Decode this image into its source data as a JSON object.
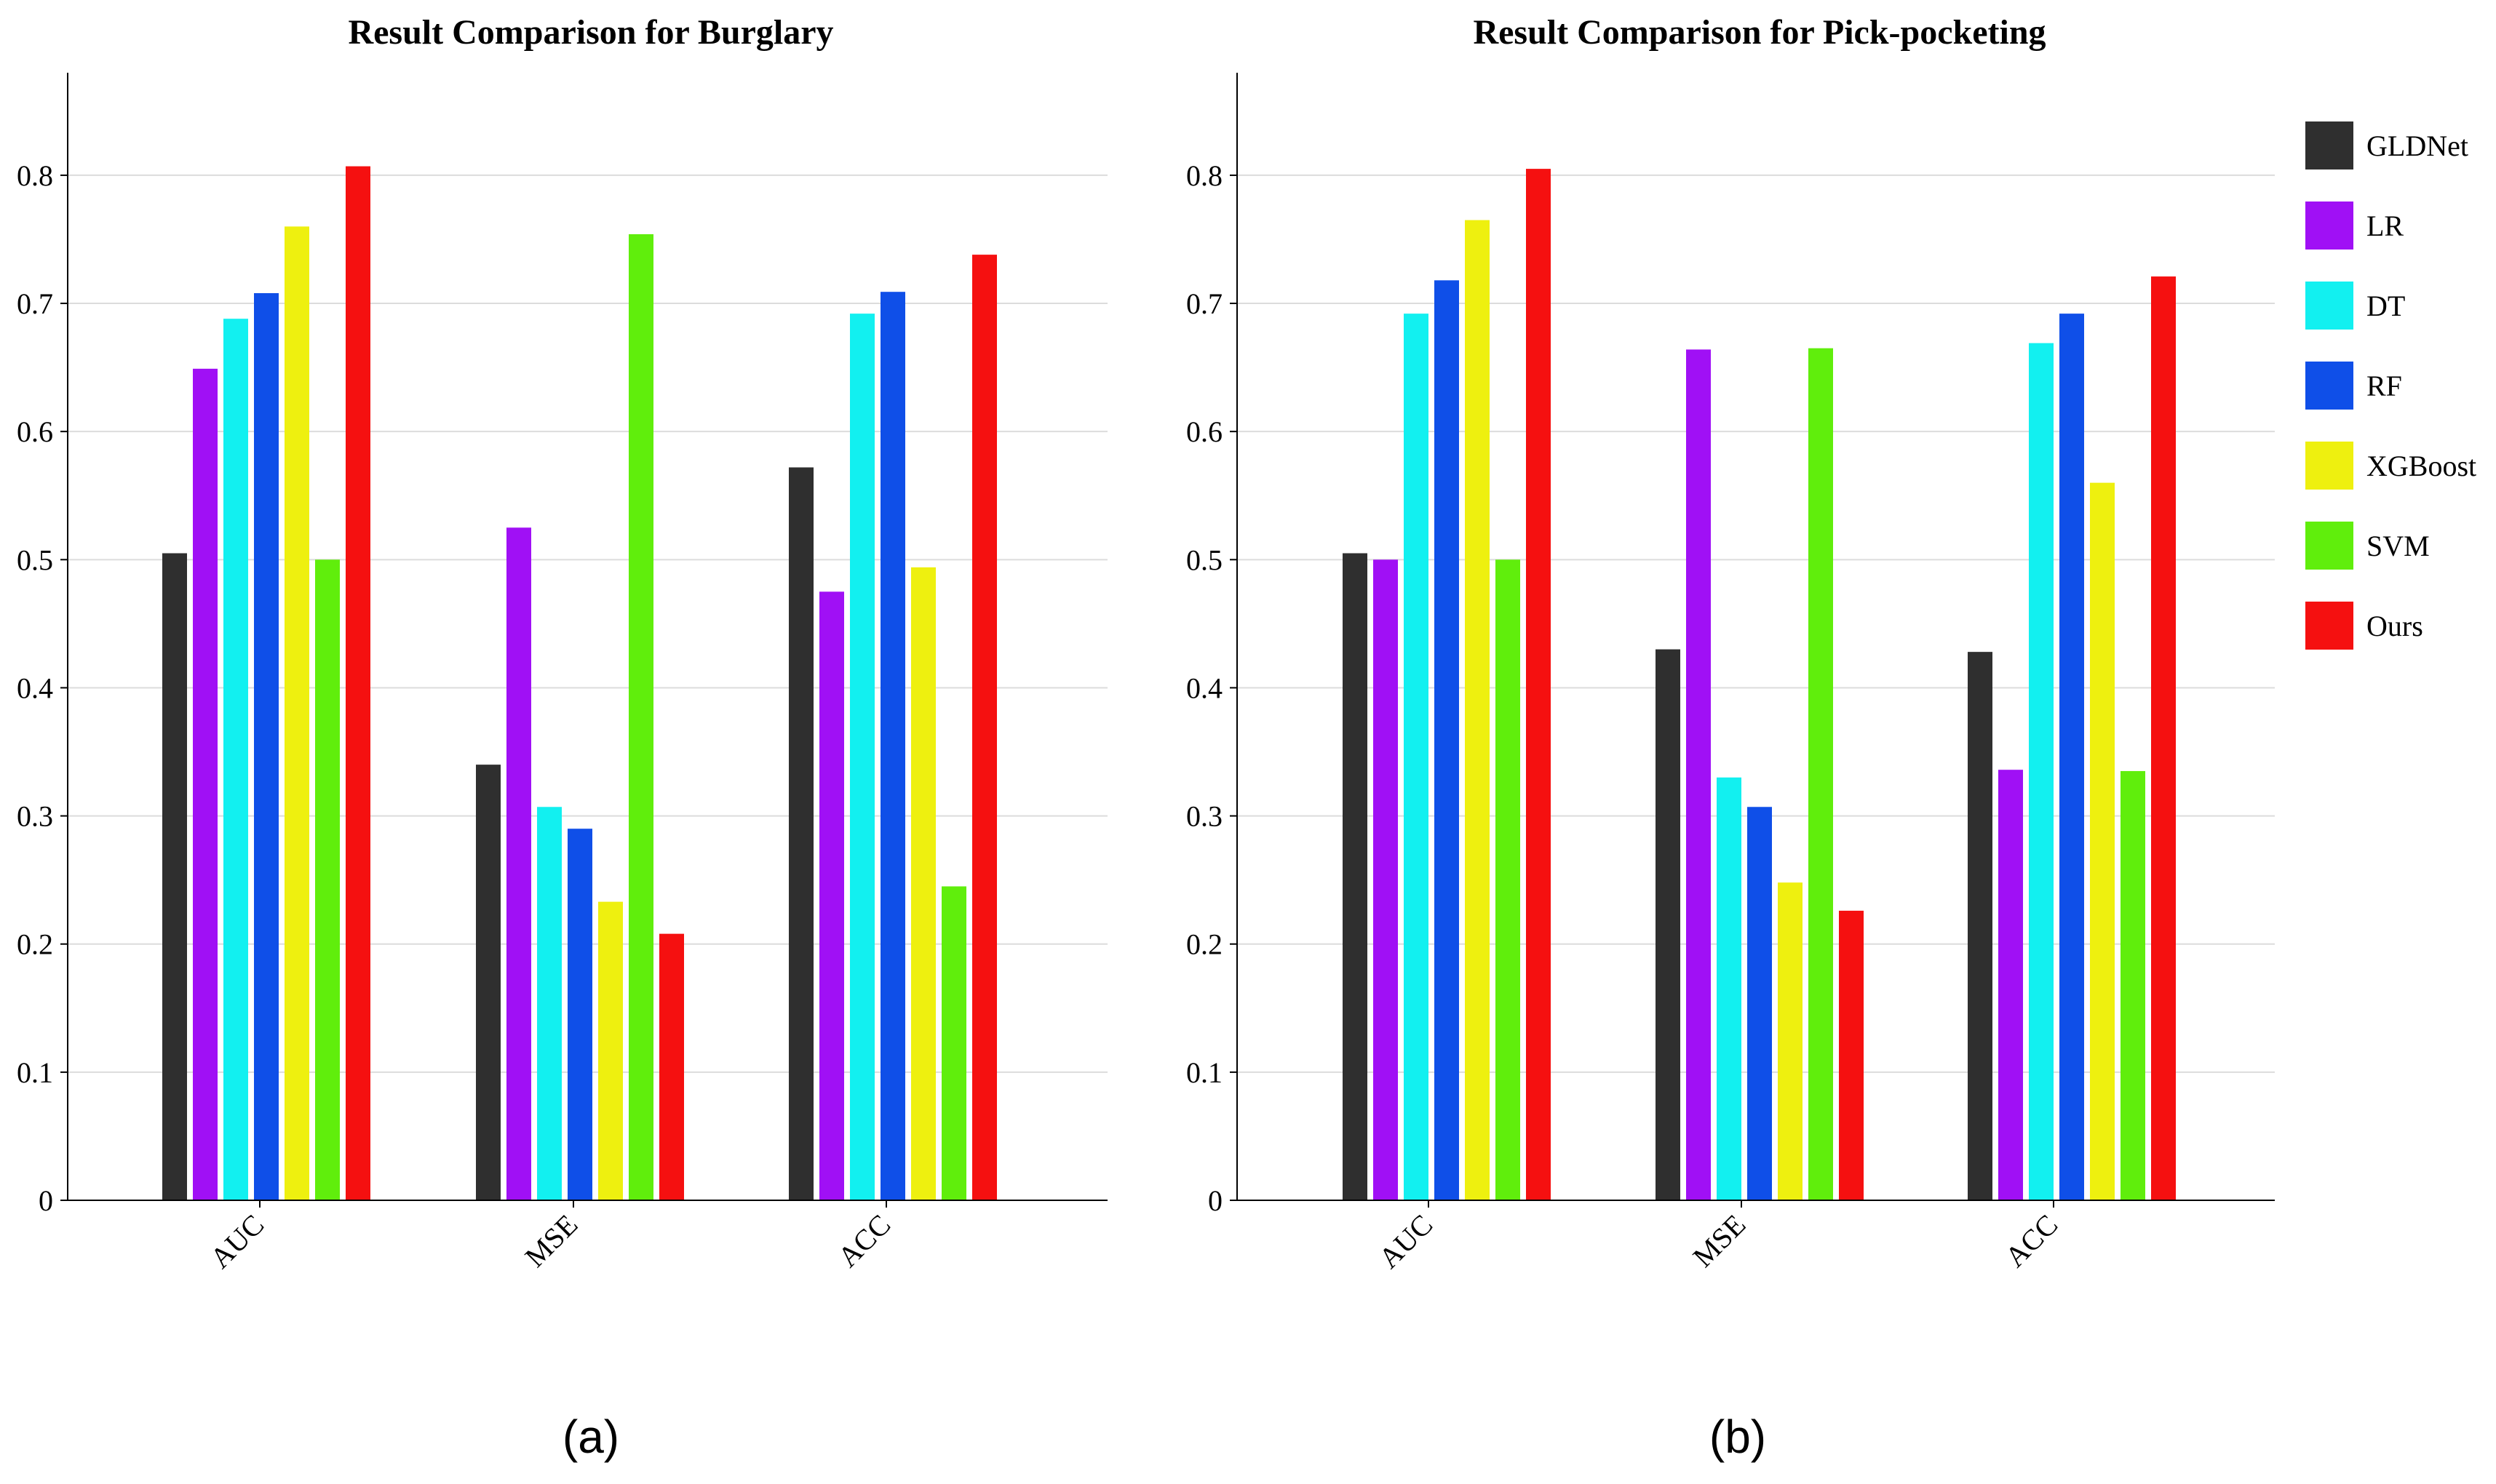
{
  "chart_data": [
    {
      "type": "bar",
      "title": "Result Comparison for Burglary",
      "caption": "(a)",
      "categories": [
        "AUC",
        "MSE",
        "ACC"
      ],
      "xlabel": "",
      "ylabel": "",
      "ylim": [
        0,
        0.88
      ],
      "yticks": [
        "0",
        "0.1",
        "0.2",
        "0.3",
        "0.4",
        "0.5",
        "0.6",
        "0.7",
        "0.8"
      ],
      "grid": true,
      "series": [
        {
          "name": "GLDNet",
          "values": [
            0.505,
            0.34,
            0.572
          ]
        },
        {
          "name": "LR",
          "values": [
            0.649,
            0.525,
            0.475
          ]
        },
        {
          "name": "DT",
          "values": [
            0.688,
            0.307,
            0.692
          ]
        },
        {
          "name": "RF",
          "values": [
            0.708,
            0.29,
            0.709
          ]
        },
        {
          "name": "XGBoost",
          "values": [
            0.76,
            0.233,
            0.494
          ]
        },
        {
          "name": "SVM",
          "values": [
            0.5,
            0.754,
            0.245
          ]
        },
        {
          "name": "Ours",
          "values": [
            0.807,
            0.208,
            0.738
          ]
        }
      ]
    },
    {
      "type": "bar",
      "title": "Result Comparison for Pick-pocketing",
      "caption": "(b)",
      "categories": [
        "AUC",
        "MSE",
        "ACC"
      ],
      "xlabel": "",
      "ylabel": "",
      "ylim": [
        0,
        0.88
      ],
      "yticks": [
        "0",
        "0.1",
        "0.2",
        "0.3",
        "0.4",
        "0.5",
        "0.6",
        "0.7",
        "0.8"
      ],
      "grid": true,
      "legend_position": "right",
      "series": [
        {
          "name": "GLDNet",
          "values": [
            0.505,
            0.43,
            0.428
          ]
        },
        {
          "name": "LR",
          "values": [
            0.5,
            0.664,
            0.336
          ]
        },
        {
          "name": "DT",
          "values": [
            0.692,
            0.33,
            0.669
          ]
        },
        {
          "name": "RF",
          "values": [
            0.718,
            0.307,
            0.692
          ]
        },
        {
          "name": "XGBoost",
          "values": [
            0.765,
            0.248,
            0.56
          ]
        },
        {
          "name": "SVM",
          "values": [
            0.5,
            0.665,
            0.335
          ]
        },
        {
          "name": "Ours",
          "values": [
            0.805,
            0.226,
            0.721
          ]
        }
      ]
    }
  ],
  "legend": {
    "items": [
      {
        "name": "GLDNet",
        "color": "#2f2f2f"
      },
      {
        "name": "LR",
        "color": "#a010f5"
      },
      {
        "name": "DT",
        "color": "#12f0f0"
      },
      {
        "name": "RF",
        "color": "#0f4fe8"
      },
      {
        "name": "XGBoost",
        "color": "#eef00f"
      },
      {
        "name": "SVM",
        "color": "#60ee0c"
      },
      {
        "name": "Ours",
        "color": "#f51010"
      }
    ]
  }
}
